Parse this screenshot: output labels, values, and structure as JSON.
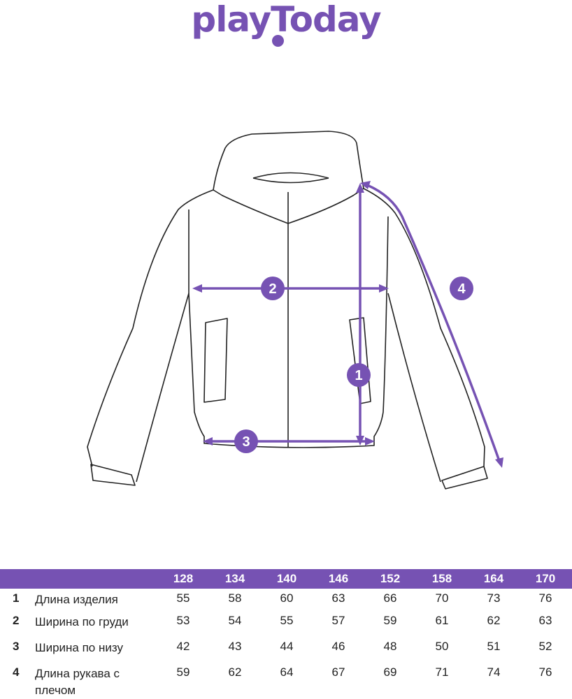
{
  "brand": {
    "logo_text": "playToday",
    "color": "#7652b3"
  },
  "diagram": {
    "markers": [
      "1",
      "2",
      "3",
      "4"
    ],
    "accent": "#7652b3"
  },
  "table": {
    "sizes": [
      "128",
      "134",
      "140",
      "146",
      "152",
      "158",
      "164",
      "170"
    ],
    "rows": [
      {
        "num": "1",
        "label": "Длина изделия",
        "values": [
          "55",
          "58",
          "60",
          "63",
          "66",
          "70",
          "73",
          "76"
        ]
      },
      {
        "num": "2",
        "label": "Ширина по груди",
        "values": [
          "53",
          "54",
          "55",
          "57",
          "59",
          "61",
          "62",
          "63"
        ]
      },
      {
        "num": "3",
        "label": "Ширина по низу",
        "values": [
          "42",
          "43",
          "44",
          "46",
          "48",
          "50",
          "51",
          "52"
        ]
      },
      {
        "num": "4",
        "label": "Длина рукава с плечом",
        "values": [
          "59",
          "62",
          "64",
          "67",
          "69",
          "71",
          "74",
          "76"
        ]
      }
    ]
  }
}
